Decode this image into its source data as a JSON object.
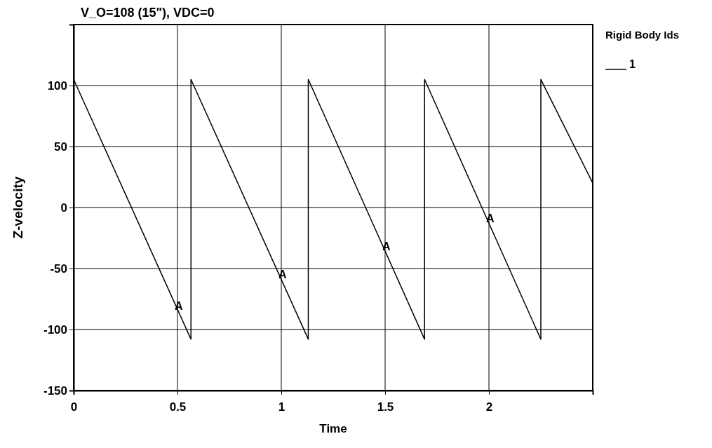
{
  "chart_data": {
    "type": "line",
    "title": "V_O=108 (15\"), VDC=0",
    "xlabel": "Time",
    "ylabel": "Z-velocity",
    "legend_title": "Rigid Body Ids",
    "xlim": [
      0,
      2.5
    ],
    "xticks": [
      0,
      0.5,
      1,
      1.5,
      2
    ],
    "ylim": [
      -150,
      150
    ],
    "yticks": [
      -150,
      -100,
      -50,
      0,
      50,
      100
    ],
    "grid": true,
    "legend": "top right",
    "series": [
      {
        "name": "1",
        "color": "#000000",
        "x": [
          0,
          0.565,
          0.565,
          1.13,
          1.13,
          1.69,
          1.69,
          2.25,
          2.25,
          2.5
        ],
        "values": [
          105,
          -108,
          105,
          -108,
          105,
          -108,
          105,
          -108,
          105,
          20
        ]
      }
    ],
    "annotations": [
      {
        "text": "A",
        "x": 0.5,
        "y": -85
      },
      {
        "text": "A",
        "x": 1,
        "y": -59
      },
      {
        "text": "A",
        "x": 1.5,
        "y": -36
      },
      {
        "text": "A",
        "x": 2,
        "y": -13
      }
    ]
  }
}
